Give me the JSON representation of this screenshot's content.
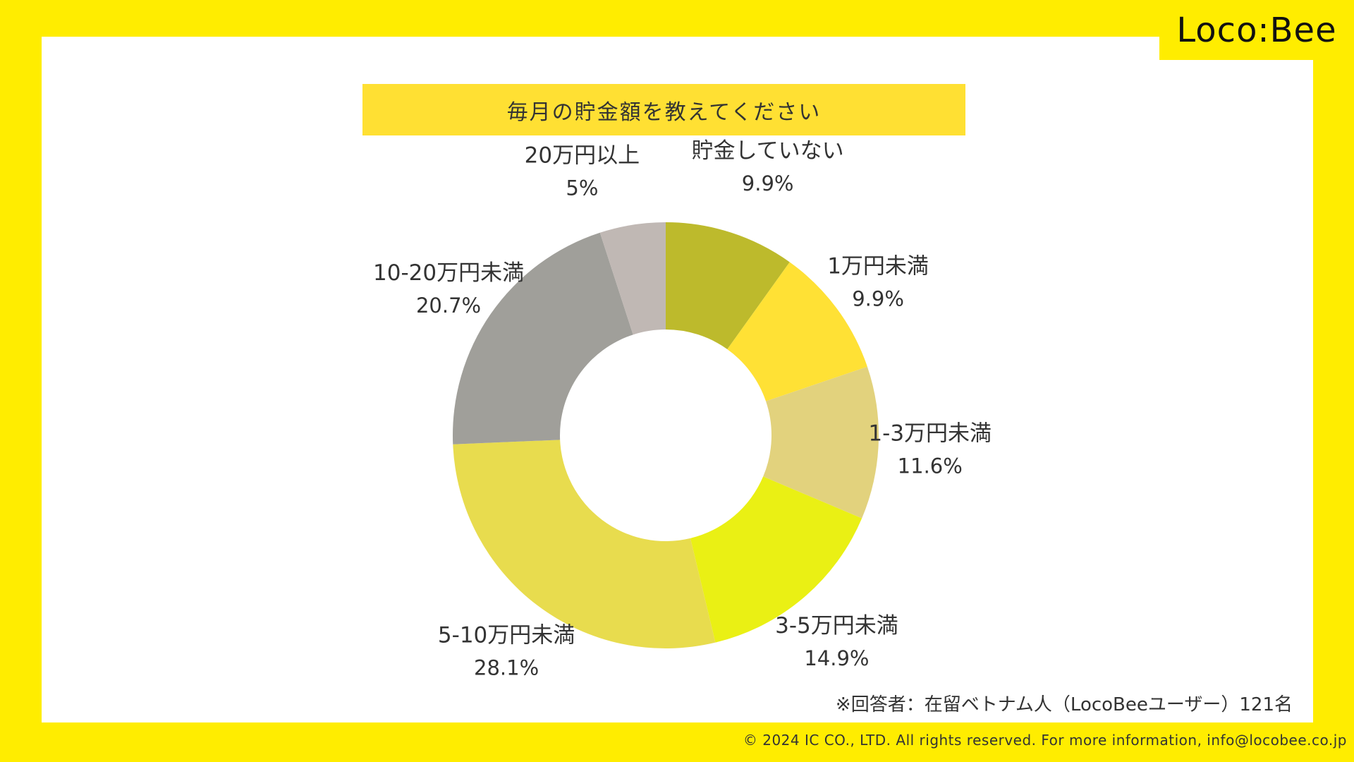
{
  "brand": {
    "logo": "Loco:Bee"
  },
  "title": "毎月の貯金額を教えてください",
  "chart_data": {
    "type": "pie",
    "donut": true,
    "title": "毎月の貯金額を教えてください",
    "categories": [
      "貯金していない",
      "1万円未満",
      "1-3万円未満",
      "3-5万円未満",
      "5-10万円未満",
      "10-20万円未満",
      "20万円以上"
    ],
    "values": [
      9.9,
      9.9,
      11.6,
      14.9,
      28.1,
      20.7,
      5
    ],
    "value_labels": [
      "9.9%",
      "9.9%",
      "11.6%",
      "14.9%",
      "28.1%",
      "20.7%",
      "5%"
    ],
    "colors": [
      "#BDBA2C",
      "#FFE135",
      "#E2D27D",
      "#EAF014",
      "#E8DC4E",
      "#A09F9A",
      "#C0B8B4"
    ],
    "unit": "%"
  },
  "footnote": "※回答者：在留ベトナム人（LocoBeeユーザー）121名",
  "copyright": "© 2024 IC CO., LTD. All rights reserved. For more information, info@locobee.co.jp"
}
